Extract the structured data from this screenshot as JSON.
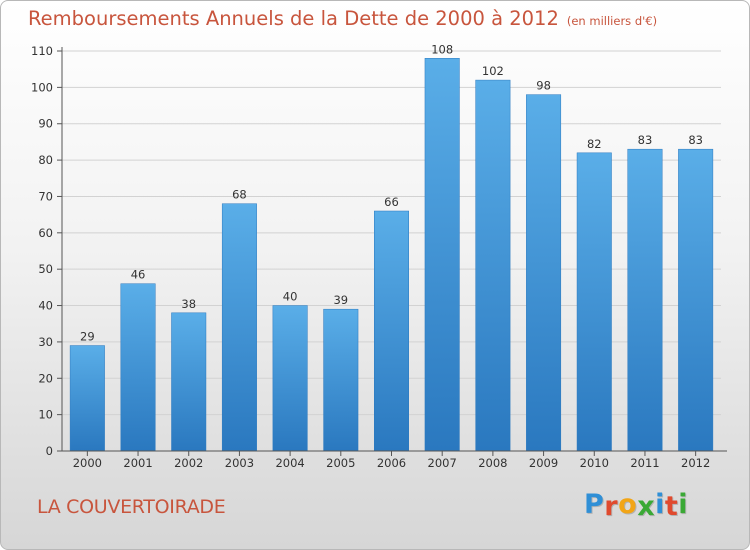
{
  "header": {
    "title": "Remboursements Annuels de la Dette de 2000 à 2012",
    "unit_note": "(en milliers d'€)"
  },
  "footer": {
    "commune": "LA COUVERTOIRADE",
    "logo_letters": [
      "P",
      "r",
      "o",
      "x",
      "i",
      "t",
      "i"
    ],
    "logo_colors": [
      "#2f8fd6",
      "#e04a2e",
      "#f2a516",
      "#3aa935",
      "#2f8fd6",
      "#e04a2e",
      "#3aa935"
    ]
  },
  "chart_data": {
    "type": "bar",
    "categories": [
      "2000",
      "2001",
      "2002",
      "2003",
      "2004",
      "2005",
      "2006",
      "2007",
      "2008",
      "2009",
      "2010",
      "2011",
      "2012"
    ],
    "values": [
      29,
      46,
      38,
      68,
      40,
      39,
      66,
      108,
      102,
      98,
      82,
      83,
      83
    ],
    "data_labels": [
      "29",
      "46",
      "38",
      "68",
      "40",
      "39",
      "66",
      "108",
      "102",
      "98",
      "82",
      "83",
      "83"
    ],
    "ylim": [
      0,
      110
    ],
    "yticks": [
      0,
      10,
      20,
      30,
      40,
      50,
      60,
      70,
      80,
      90,
      100,
      110
    ],
    "grid": true,
    "colors": {
      "bar_light": "#5aaee8",
      "bar_dark": "#2a78bf",
      "grid": "#d2d2d2",
      "axis": "#555555",
      "text": "#333333"
    }
  }
}
